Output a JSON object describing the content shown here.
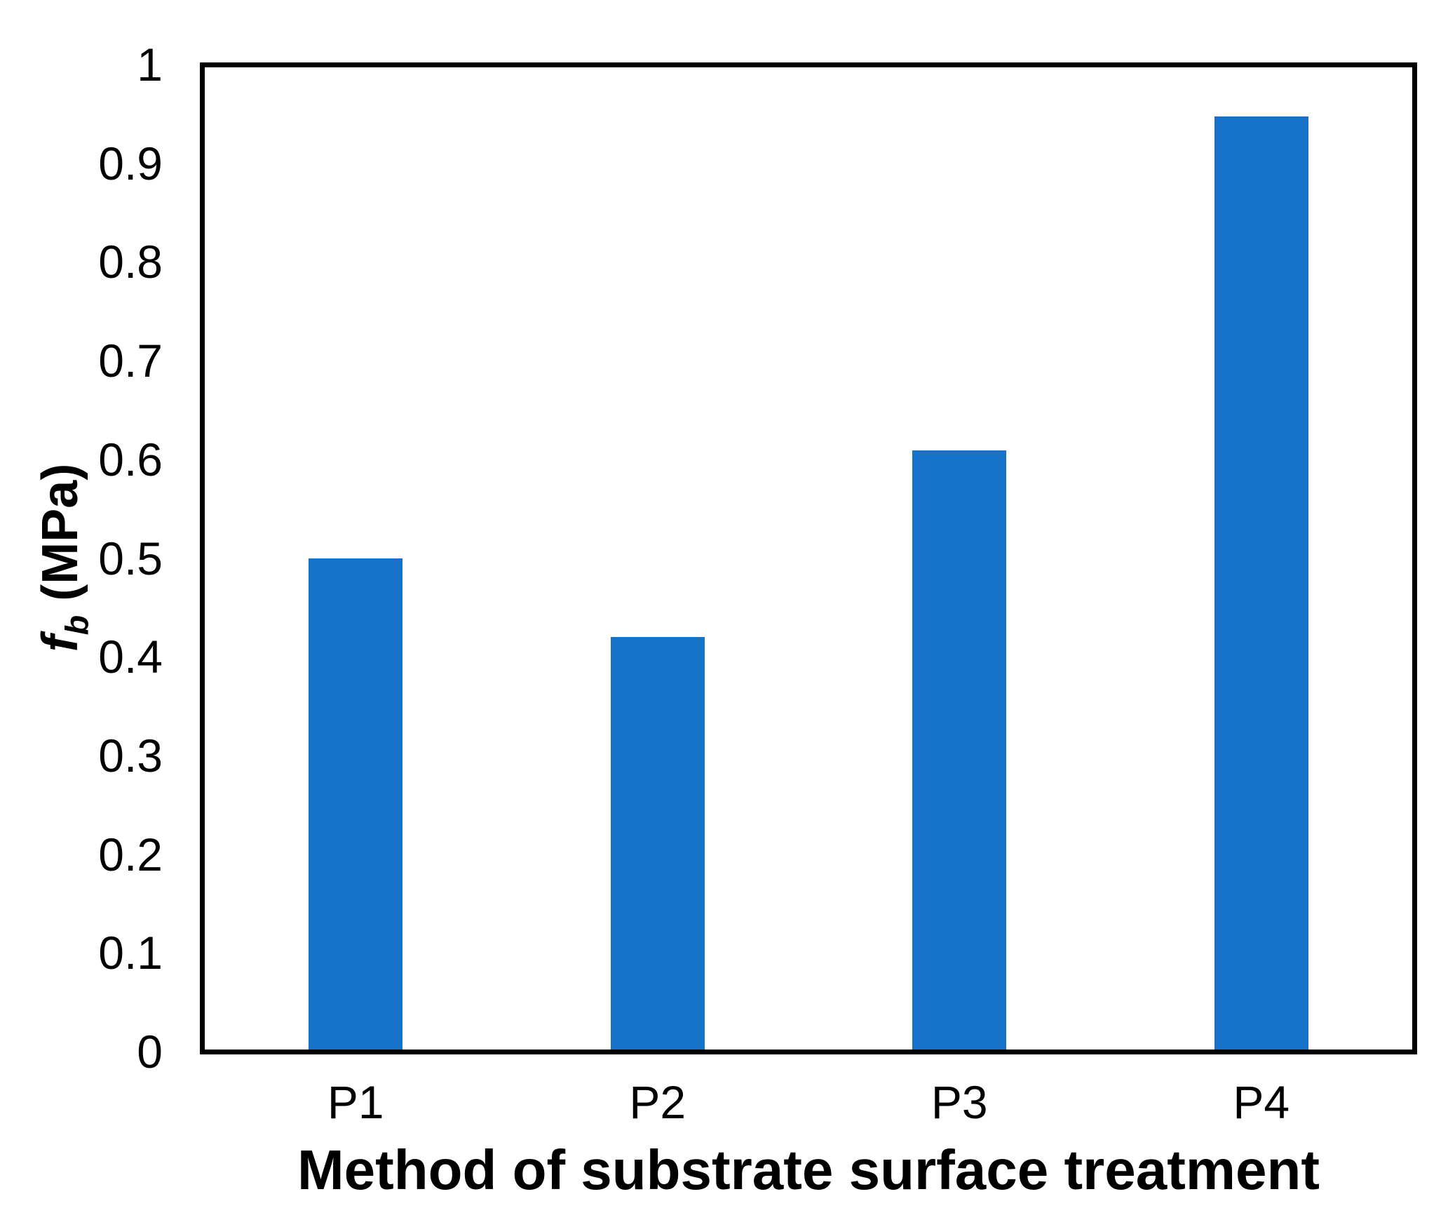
{
  "figure": {
    "background": "#ffffff"
  },
  "labels": {
    "ylabel_var": "f",
    "ylabel_sub": "b",
    "ylabel_unit": "(MPa)"
  },
  "chart_data": {
    "type": "bar",
    "categories": [
      "P1",
      "P2",
      "P3",
      "P4"
    ],
    "values": [
      0.5,
      0.42,
      0.61,
      0.95
    ],
    "title": "",
    "xlabel": "Method of substrate surface treatment",
    "ylabel": "f_b (MPa)",
    "ylim": [
      0,
      1
    ],
    "y_tick_step": 0.1,
    "y_ticks": [
      "0",
      "0.1",
      "0.2",
      "0.3",
      "0.4",
      "0.5",
      "0.6",
      "0.7",
      "0.8",
      "0.9",
      "1"
    ],
    "grid": false,
    "legend": "none",
    "bar_color": "#1673C9",
    "axis_color": "#000000"
  }
}
